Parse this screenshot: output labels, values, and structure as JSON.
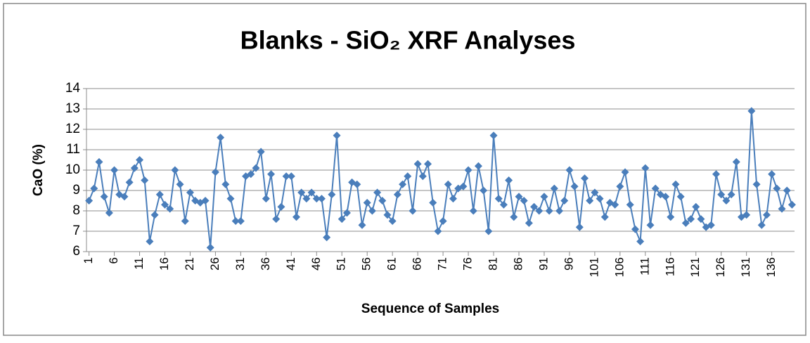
{
  "chart_data": {
    "type": "line",
    "title": "Blanks - SiO₂ XRF Analyses",
    "x_label": "Sequence of Samples",
    "y_label": "CaO (%)",
    "x": [
      1,
      2,
      3,
      4,
      5,
      6,
      7,
      8,
      9,
      10,
      11,
      12,
      13,
      14,
      15,
      16,
      17,
      18,
      19,
      20,
      21,
      22,
      23,
      24,
      25,
      26,
      27,
      28,
      29,
      30,
      31,
      32,
      33,
      34,
      35,
      36,
      37,
      38,
      39,
      40,
      41,
      42,
      43,
      44,
      45,
      46,
      47,
      48,
      49,
      50,
      51,
      52,
      53,
      54,
      55,
      56,
      57,
      58,
      59,
      60,
      61,
      62,
      63,
      64,
      65,
      66,
      67,
      68,
      69,
      70,
      71,
      72,
      73,
      74,
      75,
      76,
      77,
      78,
      79,
      80,
      81,
      82,
      83,
      84,
      85,
      86,
      87,
      88,
      89,
      90,
      91,
      92,
      93,
      94,
      95,
      96,
      97,
      98,
      99,
      100,
      101,
      102,
      103,
      104,
      105,
      106,
      107,
      108,
      109,
      110,
      111,
      112,
      113,
      114,
      115,
      116,
      117,
      118,
      119,
      120,
      121,
      122,
      123,
      124,
      125,
      126,
      127,
      128,
      129,
      130,
      131,
      132,
      133,
      134,
      135,
      136,
      137,
      138,
      139,
      140
    ],
    "series": [
      {
        "name": "CaO",
        "color": "#4a7ebb",
        "values": [
          8.5,
          9.1,
          10.4,
          8.7,
          7.9,
          10.0,
          8.8,
          8.7,
          9.4,
          10.1,
          10.5,
          9.5,
          6.5,
          7.8,
          8.8,
          8.3,
          8.1,
          10.0,
          9.3,
          7.5,
          8.9,
          8.5,
          8.4,
          8.5,
          6.2,
          9.9,
          11.6,
          9.3,
          8.6,
          7.5,
          7.5,
          9.7,
          9.8,
          10.1,
          10.9,
          8.6,
          9.8,
          7.6,
          8.2,
          9.7,
          9.7,
          7.7,
          8.9,
          8.6,
          8.9,
          8.6,
          8.6,
          6.7,
          8.8,
          11.7,
          7.6,
          7.9,
          9.4,
          9.3,
          7.3,
          8.4,
          8.0,
          8.9,
          8.5,
          7.8,
          7.5,
          8.8,
          9.3,
          9.7,
          8.0,
          10.3,
          9.7,
          10.3,
          8.4,
          7.0,
          7.5,
          9.3,
          8.6,
          9.1,
          9.2,
          10.0,
          8.0,
          10.2,
          9.0,
          7.0,
          11.7,
          8.6,
          8.3,
          9.5,
          7.7,
          8.7,
          8.5,
          7.4,
          8.2,
          8.0,
          8.7,
          8.0,
          9.1,
          8.0,
          8.5,
          10.0,
          9.2,
          7.2,
          9.6,
          8.5,
          8.9,
          8.6,
          7.7,
          8.4,
          8.3,
          9.2,
          9.9,
          8.3,
          7.1,
          6.5,
          10.1,
          7.3,
          9.1,
          8.8,
          8.7,
          7.7,
          9.3,
          8.7,
          7.4,
          7.6,
          8.2,
          7.6,
          7.2,
          7.3,
          9.8,
          8.8,
          8.5,
          8.8,
          10.4,
          7.7,
          7.8,
          12.9,
          9.3,
          7.3,
          7.8,
          9.8,
          9.1,
          8.1,
          9.0,
          8.3
        ]
      }
    ],
    "xlim": [
      0.5,
      140.5
    ],
    "xticks": [
      1,
      6,
      11,
      16,
      21,
      26,
      31,
      36,
      41,
      46,
      51,
      56,
      61,
      66,
      71,
      76,
      81,
      86,
      91,
      96,
      101,
      106,
      111,
      116,
      121,
      126,
      131,
      136
    ],
    "ylim": [
      6,
      14
    ],
    "yticks": [
      6,
      7,
      8,
      9,
      10,
      11,
      12,
      13,
      14
    ],
    "grid": true
  }
}
